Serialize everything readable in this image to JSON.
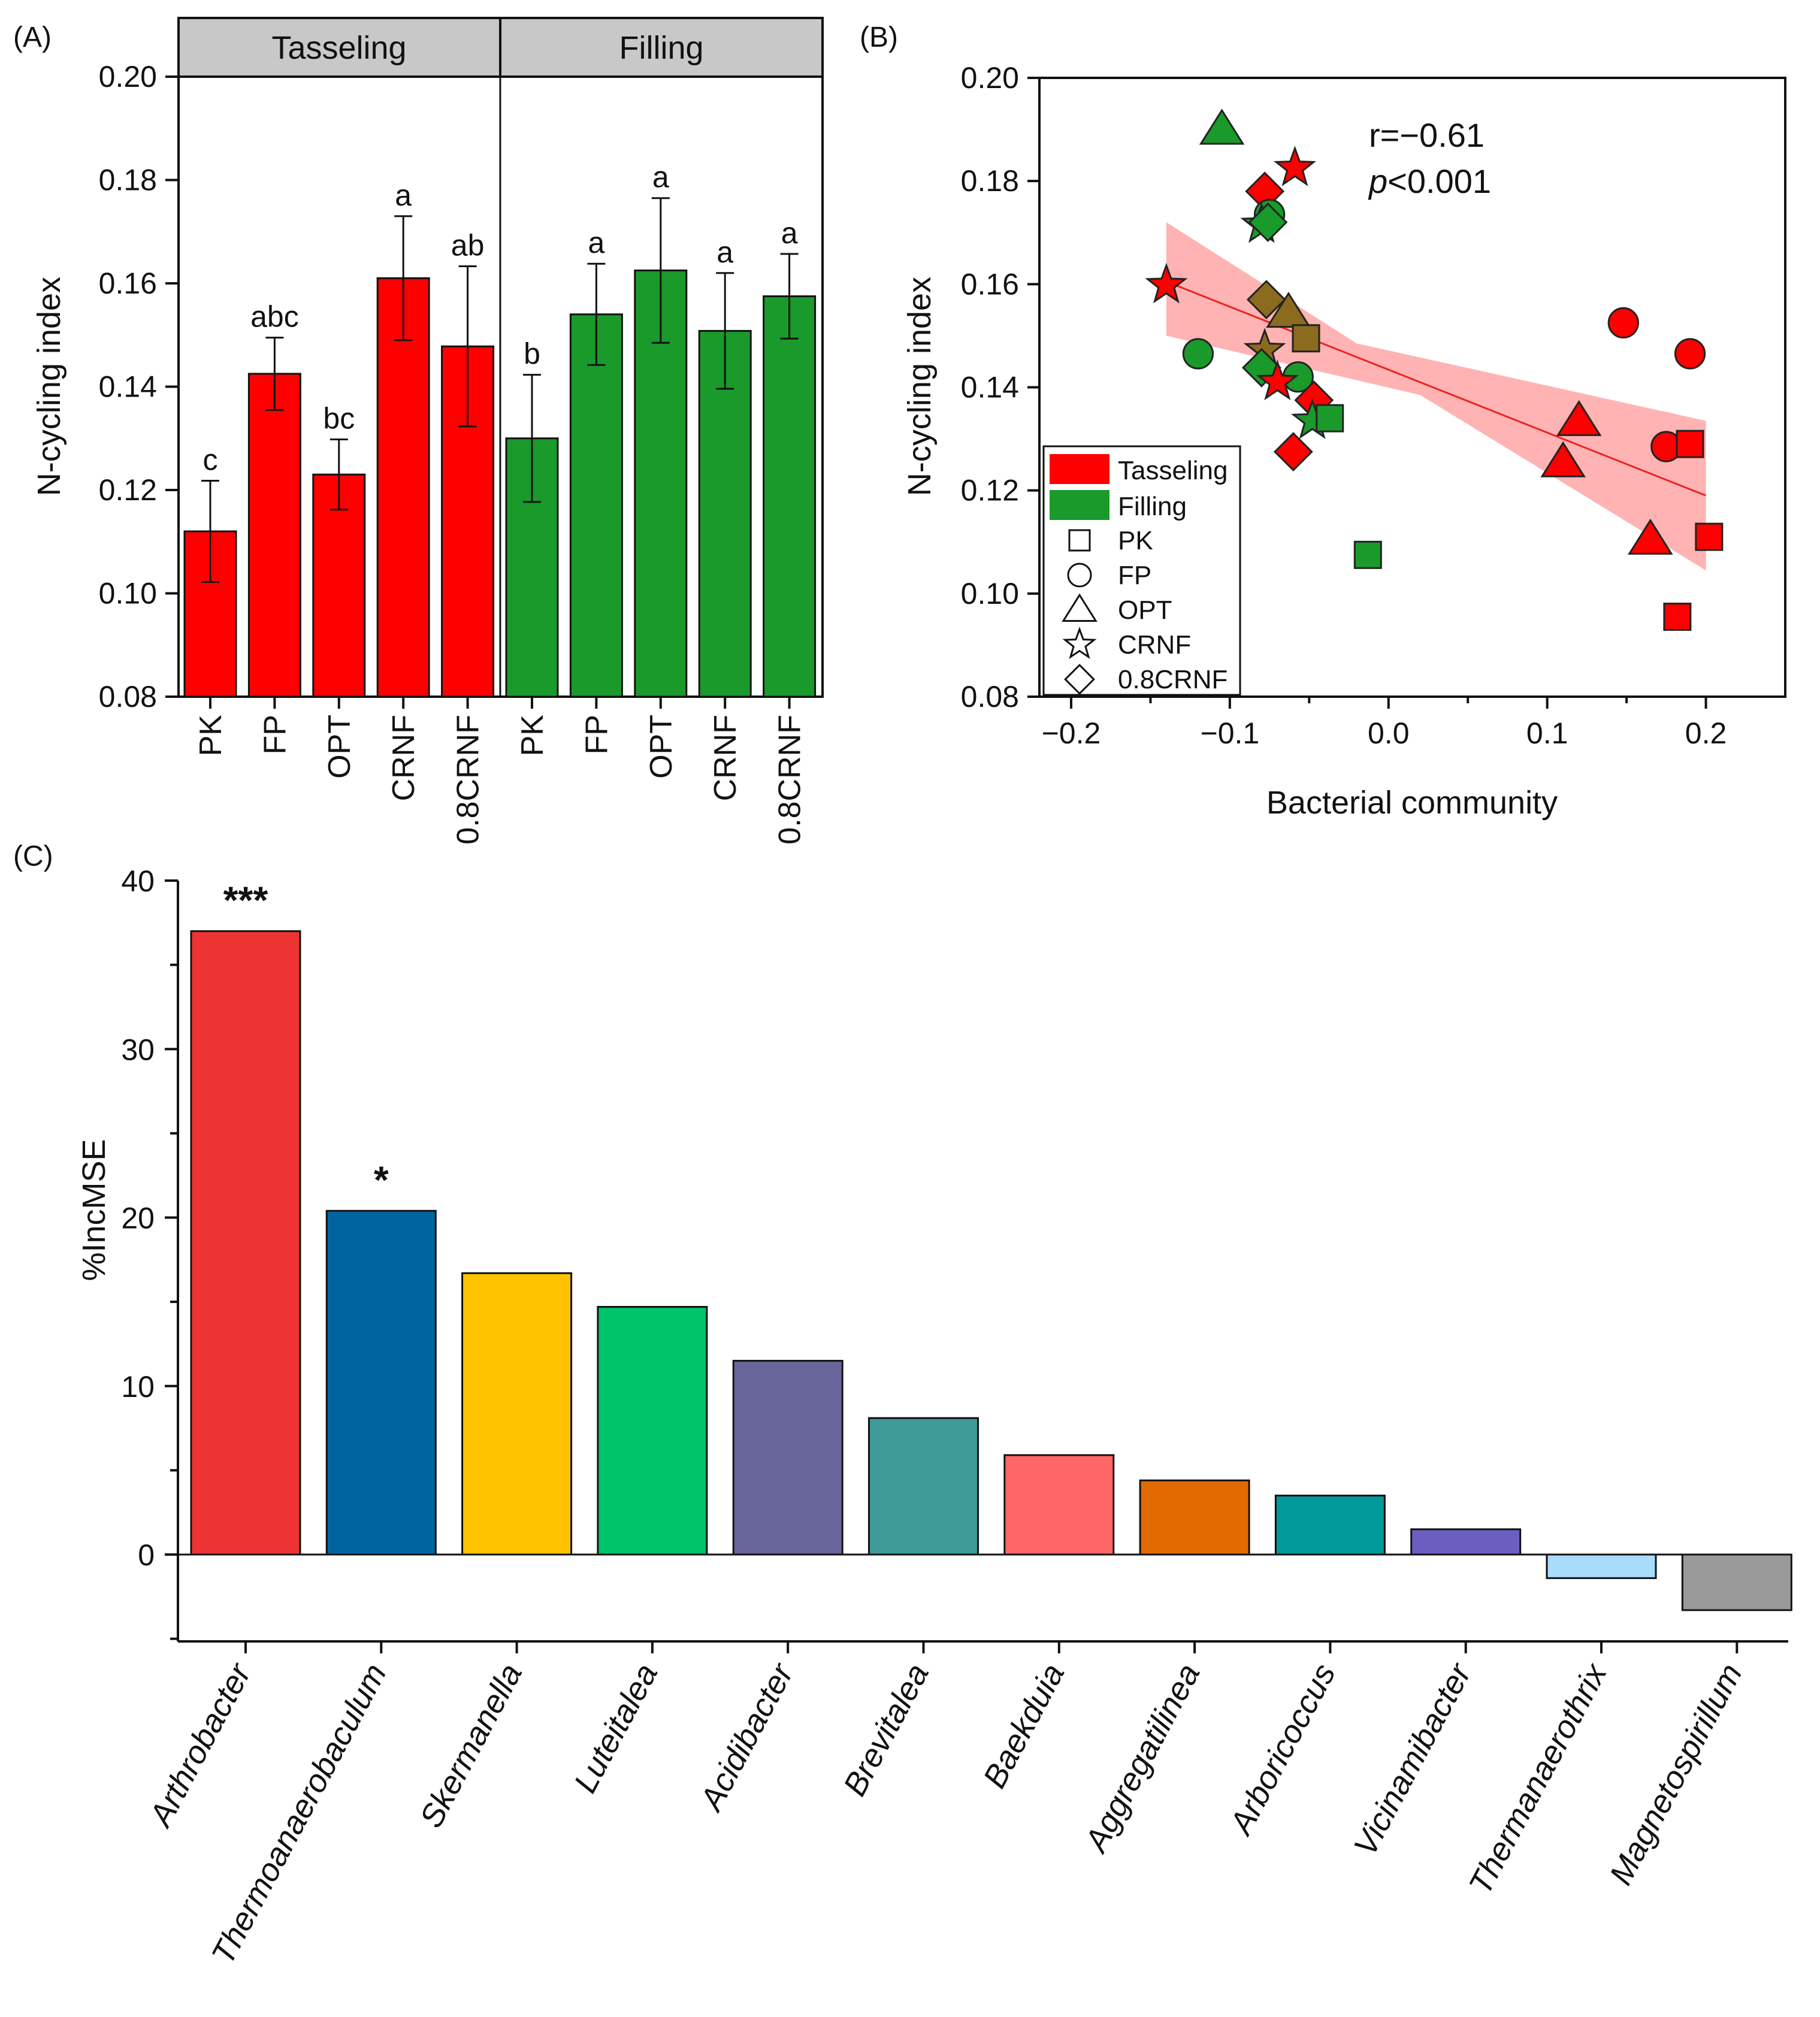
{
  "figure": {
    "panel_a": {
      "label": "(A)",
      "strips": [
        "Tasseling",
        "Filling"
      ],
      "ylabel": "N-cycling index",
      "yticks": [
        "0.08",
        "0.10",
        "0.12",
        "0.14",
        "0.16",
        "0.18",
        "0.20"
      ]
    },
    "panel_b": {
      "label": "(B)",
      "xlabel": "Bacterial community",
      "ylabel": "N-cycling index",
      "xticks": [
        "−0.2",
        "−0.1",
        "0.0",
        "0.1",
        "0.2"
      ],
      "yticks": [
        "0.08",
        "0.10",
        "0.12",
        "0.14",
        "0.16",
        "0.18",
        "0.20"
      ],
      "r_text": "r=−0.61",
      "p_italic": "p",
      "p_rest": "<0.001",
      "legend": {
        "stages": [
          {
            "label": "Tasseling",
            "color": "#ff0000"
          },
          {
            "label": "Filling",
            "color": "#1a9a2a"
          }
        ],
        "shapes": [
          {
            "label": "PK",
            "shape": "square"
          },
          {
            "label": "FP",
            "shape": "circle"
          },
          {
            "label": "OPT",
            "shape": "triangle"
          },
          {
            "label": "CRNF",
            "shape": "star"
          },
          {
            "label": "0.8CRNF",
            "shape": "diamond"
          }
        ]
      }
    },
    "panel_c": {
      "label": "(C)",
      "ylabel": "%IncMSE",
      "yticks": [
        "0",
        "10",
        "20",
        "30",
        "40"
      ]
    }
  },
  "colors": {
    "tasseling": "#ff0000",
    "filling": "#1a9a2a",
    "overlap": "#8b6b1e",
    "band": "#ff9999",
    "strip": "#c8c8c8"
  },
  "chart_data": [
    {
      "type": "bar",
      "title": "(A)",
      "ylabel": "N-cycling index",
      "ylim": [
        0.08,
        0.2
      ],
      "facets": [
        "Tasseling",
        "Filling"
      ],
      "categories": [
        "PK",
        "FP",
        "OPT",
        "CRNF",
        "0.8CRNF"
      ],
      "series": [
        {
          "name": "Tasseling",
          "values": [
            0.112,
            0.1425,
            0.123,
            0.161,
            0.1478
          ],
          "errors": [
            0.0098,
            0.007,
            0.0068,
            0.012,
            0.0155
          ],
          "letters": [
            "c",
            "abc",
            "bc",
            "a",
            "ab"
          ]
        },
        {
          "name": "Filling",
          "values": [
            0.13,
            0.154,
            0.1625,
            0.1508,
            0.1575
          ],
          "errors": [
            0.0123,
            0.0098,
            0.014,
            0.0112,
            0.0082
          ],
          "letters": [
            "b",
            "a",
            "a",
            "a",
            "a"
          ]
        }
      ]
    },
    {
      "type": "scatter",
      "title": "(B)",
      "xlabel": "Bacterial community",
      "ylabel": "N-cycling index",
      "xlim": [
        -0.22,
        0.25
      ],
      "ylim": [
        0.08,
        0.2
      ],
      "annotation": "r=−0.61, p<0.001",
      "regression": {
        "x": [
          -0.14,
          0.2
        ],
        "y": [
          0.1605,
          0.119
        ],
        "ci_upper": [
          0.172,
          0.1335
        ],
        "ci_lower": [
          0.15,
          0.1045
        ]
      },
      "points": [
        {
          "x": -0.105,
          "y": 0.19,
          "group": "Filling",
          "shape": "triangle"
        },
        {
          "x": -0.059,
          "y": 0.1825,
          "group": "Tasseling",
          "shape": "star"
        },
        {
          "x": -0.078,
          "y": 0.178,
          "group": "Tasseling",
          "shape": "diamond"
        },
        {
          "x": -0.075,
          "y": 0.1735,
          "group": "Filling",
          "shape": "circle"
        },
        {
          "x": -0.08,
          "y": 0.1715,
          "group": "Filling",
          "shape": "star"
        },
        {
          "x": -0.076,
          "y": 0.172,
          "group": "Filling",
          "shape": "diamond"
        },
        {
          "x": -0.14,
          "y": 0.1598,
          "group": "Tasseling",
          "shape": "star"
        },
        {
          "x": -0.077,
          "y": 0.157,
          "group": "Overlap",
          "shape": "diamond"
        },
        {
          "x": -0.063,
          "y": 0.1545,
          "group": "Overlap",
          "shape": "triangle"
        },
        {
          "x": -0.052,
          "y": 0.1495,
          "group": "Overlap",
          "shape": "square"
        },
        {
          "x": -0.12,
          "y": 0.1465,
          "group": "Filling",
          "shape": "circle"
        },
        {
          "x": -0.078,
          "y": 0.1472,
          "group": "Overlap",
          "shape": "star"
        },
        {
          "x": -0.08,
          "y": 0.1438,
          "group": "Filling",
          "shape": "diamond"
        },
        {
          "x": -0.057,
          "y": 0.142,
          "group": "Filling",
          "shape": "circle"
        },
        {
          "x": -0.07,
          "y": 0.141,
          "group": "Tasseling",
          "shape": "star"
        },
        {
          "x": -0.047,
          "y": 0.1375,
          "group": "Tasseling",
          "shape": "diamond"
        },
        {
          "x": -0.048,
          "y": 0.1335,
          "group": "Filling",
          "shape": "star"
        },
        {
          "x": -0.037,
          "y": 0.134,
          "group": "Filling",
          "shape": "square"
        },
        {
          "x": -0.06,
          "y": 0.1275,
          "group": "Tasseling",
          "shape": "diamond"
        },
        {
          "x": -0.013,
          "y": 0.1075,
          "group": "Filling",
          "shape": "square"
        },
        {
          "x": 0.148,
          "y": 0.1525,
          "group": "Tasseling",
          "shape": "circle"
        },
        {
          "x": 0.19,
          "y": 0.1465,
          "group": "Tasseling",
          "shape": "circle"
        },
        {
          "x": 0.12,
          "y": 0.1335,
          "group": "Tasseling",
          "shape": "triangle"
        },
        {
          "x": 0.11,
          "y": 0.1255,
          "group": "Tasseling",
          "shape": "triangle"
        },
        {
          "x": 0.175,
          "y": 0.1285,
          "group": "Tasseling",
          "shape": "circle"
        },
        {
          "x": 0.19,
          "y": 0.129,
          "group": "Tasseling",
          "shape": "square"
        },
        {
          "x": 0.165,
          "y": 0.1105,
          "group": "Tasseling",
          "shape": "triangle"
        },
        {
          "x": 0.202,
          "y": 0.111,
          "group": "Tasseling",
          "shape": "square"
        },
        {
          "x": 0.182,
          "y": 0.0955,
          "group": "Tasseling",
          "shape": "square"
        }
      ]
    },
    {
      "type": "bar",
      "title": "(C)",
      "ylabel": "%IncMSE",
      "ylim": [
        -5,
        40
      ],
      "categories": [
        "Arthrobacter",
        "Thermoanaerobaculum",
        "Skermanella",
        "Luteitalea",
        "Acidibacter",
        "Brevitalea",
        "Baekduia",
        "Aggregatilinea",
        "Arboricoccus",
        "Vicinamibacter",
        "Thermanaerothrix",
        "Magnetospirillum"
      ],
      "values": [
        37.0,
        20.4,
        16.7,
        14.7,
        11.5,
        8.1,
        5.9,
        4.4,
        3.5,
        1.5,
        -1.4,
        -3.3
      ],
      "colors": [
        "#ee3333",
        "#00659e",
        "#ffc300",
        "#00c46a",
        "#67659a",
        "#3f9b98",
        "#ff6666",
        "#e26a00",
        "#009a9a",
        "#6a5fc0",
        "#a8dcfa",
        "#9a9a9a"
      ],
      "significance": [
        "***",
        "*",
        "",
        "",
        "",
        "",
        "",
        "",
        "",
        "",
        "",
        ""
      ]
    }
  ]
}
